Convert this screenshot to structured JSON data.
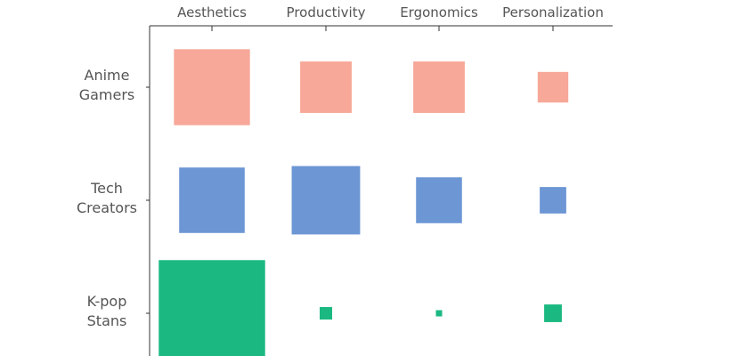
{
  "chart_data": {
    "type": "heatmap",
    "encoding": "square area",
    "columns": [
      "Aesthetics",
      "Productivity",
      "Ergonomics",
      "Personalization"
    ],
    "rows": [
      {
        "label_lines": [
          "Anime",
          "Gamers"
        ],
        "color": "#F7A898",
        "values": [
          74,
          34,
          34,
          12
        ]
      },
      {
        "label_lines": [
          "Tech",
          "Creators"
        ],
        "color": "#6C96D4",
        "values": [
          55,
          60,
          27,
          9
        ]
      },
      {
        "label_lines": [
          "K-pop",
          "Stans"
        ],
        "color": "#1BB981",
        "values": [
          145,
          2,
          0.5,
          4
        ]
      }
    ],
    "legend": "none",
    "grid": false
  }
}
